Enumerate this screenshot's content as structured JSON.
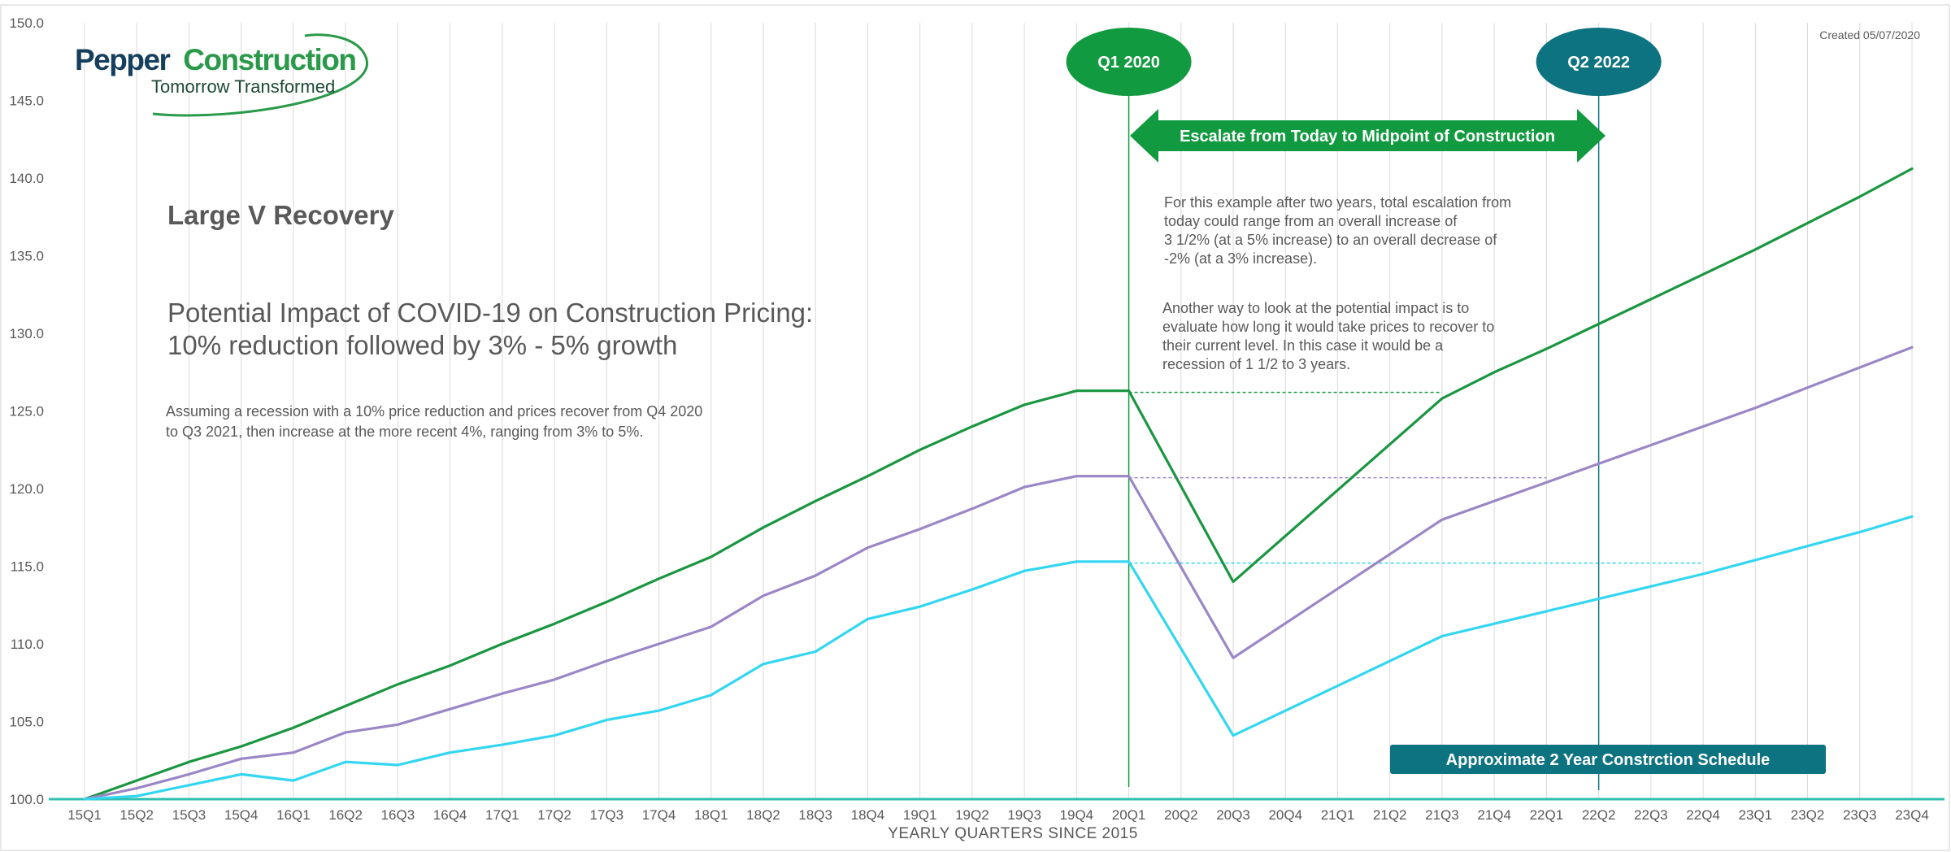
{
  "logo": {
    "word1": "Pepper",
    "word2": "Construction",
    "tagline": "Tomorrow Transformed"
  },
  "created_note": "Created 05/07/2020",
  "headline": "Large V Recovery",
  "subtitle_lines": [
    "Potential Impact of COVID-19 on Construction Pricing:",
    "10% reduction followed by 3% - 5% growth"
  ],
  "assumption_lines": [
    "Assuming a recession with a 10% price reduction and prices recover from Q4 2020",
    "to Q3 2021, then increase at the more recent 4%, ranging from 3% to 5%."
  ],
  "note1_lines": [
    "For this example after two years, total escalation from",
    "today could range from an overall increase of",
    "3 1/2% (at a 5% increase) to an overall decrease of",
    "-2% (at a 3% increase)."
  ],
  "note2_lines": [
    "Another way to look at the potential impact is to",
    "evaluate how long it would take prices to recover to",
    "their current level.  In this case it would be a",
    "recession of 1 1/2  to 3 years."
  ],
  "markers": {
    "start": {
      "label": "Q1 2020",
      "at": "20Q1",
      "color": "#119a3f"
    },
    "end": {
      "label": "Q2 2022",
      "at": "22Q2",
      "color": "#0e7381"
    }
  },
  "escalate_arrow": {
    "label": "Escalate from Today to Midpoint of Construction",
    "color": "#119a3f"
  },
  "schedule_box": {
    "label": "Approximate 2 Year Constrction Schedule",
    "color": "#0e7381"
  },
  "colors": {
    "high": "#1a9641",
    "mid": "#9b86c6",
    "low": "#33d6f0",
    "axis": "#2fbfb0",
    "grid": "#d9d9d9"
  },
  "chart_data": {
    "type": "line",
    "title": "",
    "xlabel": "YEARLY QUARTERS SINCE 2015",
    "ylabel": "",
    "ylim": [
      100,
      150
    ],
    "ytick_step": 5,
    "categories": [
      "15Q1",
      "15Q2",
      "15Q3",
      "15Q4",
      "16Q1",
      "16Q2",
      "16Q3",
      "16Q4",
      "17Q1",
      "17Q2",
      "17Q3",
      "17Q4",
      "18Q1",
      "18Q2",
      "18Q3",
      "18Q4",
      "19Q1",
      "19Q2",
      "19Q3",
      "19Q4",
      "20Q1",
      "20Q2",
      "20Q3",
      "20Q4",
      "21Q1",
      "21Q2",
      "21Q3",
      "21Q4",
      "22Q1",
      "22Q2",
      "22Q3",
      "22Q4",
      "23Q1",
      "23Q2",
      "23Q3",
      "23Q4"
    ],
    "series": [
      {
        "key": "high",
        "values": [
          100.0,
          101.2,
          102.4,
          103.4,
          104.6,
          106.0,
          107.4,
          108.6,
          110.0,
          111.3,
          112.7,
          114.2,
          115.6,
          117.5,
          119.2,
          120.8,
          122.5,
          124.0,
          125.4,
          126.3,
          126.3,
          null,
          114.0,
          null,
          null,
          null,
          125.8,
          127.5,
          129.0,
          130.6,
          132.2,
          133.8,
          135.4,
          137.1,
          138.8,
          140.6
        ]
      },
      {
        "key": "mid",
        "values": [
          100.0,
          100.7,
          101.6,
          102.6,
          103.0,
          104.3,
          104.8,
          105.8,
          106.8,
          107.7,
          108.9,
          110.0,
          111.1,
          113.1,
          114.4,
          116.2,
          117.4,
          118.7,
          120.1,
          120.8,
          120.8,
          null,
          109.1,
          null,
          null,
          null,
          118.0,
          119.2,
          120.4,
          121.6,
          122.8,
          124.0,
          125.2,
          126.5,
          127.8,
          129.1
        ]
      },
      {
        "key": "low",
        "values": [
          100.0,
          100.2,
          100.9,
          101.6,
          101.2,
          102.4,
          102.2,
          103.0,
          103.5,
          104.1,
          105.1,
          105.7,
          106.7,
          108.7,
          109.5,
          111.6,
          112.4,
          113.5,
          114.7,
          115.3,
          115.3,
          null,
          104.1,
          null,
          null,
          null,
          110.5,
          111.3,
          112.1,
          112.9,
          113.7,
          114.5,
          115.4,
          116.3,
          117.2,
          118.2
        ]
      }
    ],
    "reference_lines": [
      {
        "key": "high",
        "value": 126.2,
        "from": "20Q1",
        "to": "21Q3"
      },
      {
        "key": "mid",
        "value": 120.7,
        "from": "20Q1",
        "to": "22Q1"
      },
      {
        "key": "low",
        "value": 115.2,
        "from": "20Q1",
        "to": "22Q4"
      }
    ]
  }
}
